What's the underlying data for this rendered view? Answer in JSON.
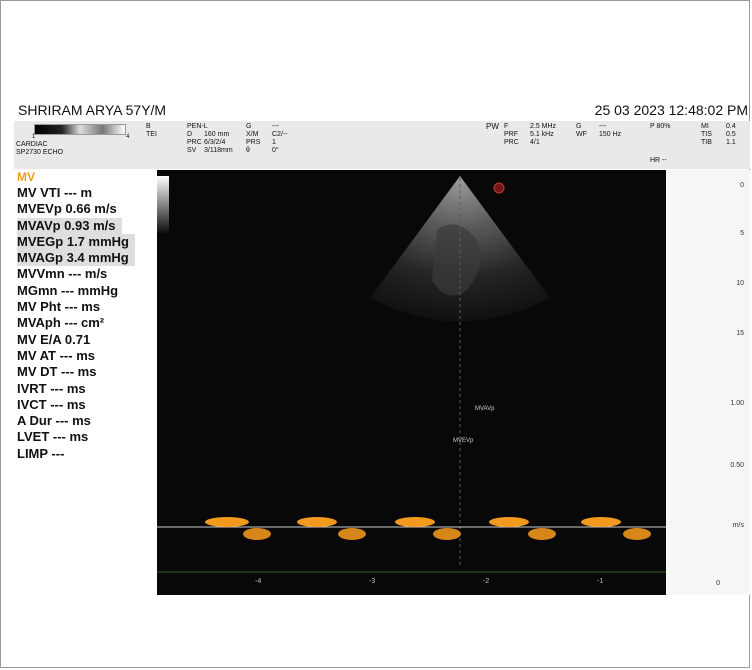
{
  "header": {
    "patient": "SHRIRAM ARYA 57Y/M",
    "datetime": "25  03  2023 12:48:02 PM"
  },
  "params": {
    "gray_scale_min": "1",
    "gray_scale_max": "4",
    "mode": "CARDIAC",
    "probe": "SP2730   ECHO",
    "col1": [
      "B",
      "TEI"
    ],
    "col2": [
      "PEN-L",
      "D",
      "PRC",
      "SV"
    ],
    "col2v": [
      "",
      "160 mm",
      "6/3/2/4",
      "3/118mm"
    ],
    "col3": [
      "G",
      "X/M",
      "PRS",
      "θ"
    ],
    "col3v": [
      "---",
      "C2/--",
      "1",
      "0°"
    ],
    "pw": "PW",
    "col4": [
      "F",
      "PRF",
      "PRC"
    ],
    "col4v": [
      "2.5 MHz",
      "5.1 kHz",
      "4/1"
    ],
    "col5": [
      "G",
      "WF"
    ],
    "col5v": [
      "---",
      "150 Hz"
    ],
    "power": "P   80%",
    "hr": "HR --",
    "col6": [
      "MI",
      "TIS",
      "TIB"
    ],
    "col6v": [
      "0.4",
      "0.5",
      "1.1"
    ]
  },
  "measurements": {
    "title": "MV",
    "rows": [
      "MV VTI --- m",
      "MVEVp 0.66 m/s",
      "MVAVp 0.93 m/s",
      "MVEGp 1.7 mmHg",
      "MVAGp 3.4 mmHg",
      "MVVmn --- m/s",
      "MGmn --- mmHg",
      "MV Pht --- ms",
      "MVAph --- cm²",
      "MV E/A 0.71",
      "MV AT --- ms",
      "MV DT --- ms",
      "IVRT --- ms",
      "IVCT --- ms",
      "A Dur --- ms",
      "LVET --- ms",
      "LIMP ---"
    ]
  },
  "image_labels": {
    "mvavp": "MVAVp",
    "mvevp": "MVEVp"
  },
  "depth_scale": [
    "0",
    "5",
    "10",
    "15"
  ],
  "velocity_scale": [
    "1.00",
    "0.50",
    "m/s",
    "0"
  ],
  "time_axis": [
    "-4",
    "-3",
    "-2",
    "-1"
  ],
  "colors": {
    "doppler": "#f39a1e",
    "accent": "#f39a1e"
  }
}
